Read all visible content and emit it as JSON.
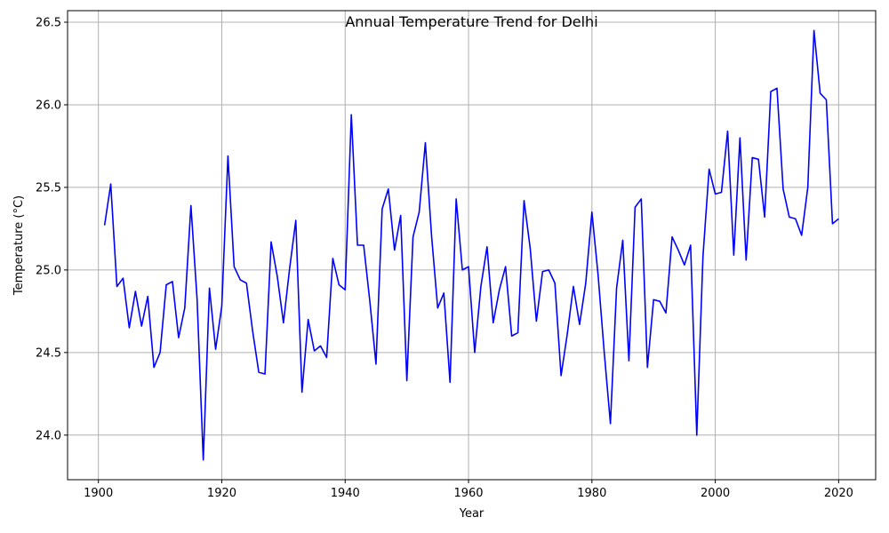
{
  "chart_data": {
    "type": "line",
    "title": "Annual Temperature Trend for Delhi",
    "xlabel": "Year",
    "ylabel": "Temperature (°C)",
    "xlim": [
      1895,
      2026
    ],
    "ylim": [
      23.73,
      26.57
    ],
    "x_ticks": [
      1900,
      1920,
      1940,
      1960,
      1980,
      2000,
      2020
    ],
    "y_ticks": [
      24.0,
      24.5,
      25.0,
      25.5,
      26.0,
      26.5
    ],
    "x_tick_labels": [
      "1900",
      "1920",
      "1940",
      "1960",
      "1980",
      "2000",
      "2020"
    ],
    "y_tick_labels": [
      "24.0",
      "24.5",
      "25.0",
      "25.5",
      "26.0",
      "26.5"
    ],
    "grid": true,
    "series": [
      {
        "color": "#0000ff",
        "x": [
          1901,
          1902,
          1903,
          1904,
          1905,
          1906,
          1907,
          1908,
          1909,
          1910,
          1911,
          1912,
          1913,
          1914,
          1915,
          1916,
          1917,
          1918,
          1919,
          1920,
          1921,
          1922,
          1923,
          1924,
          1925,
          1926,
          1927,
          1928,
          1929,
          1930,
          1931,
          1932,
          1933,
          1934,
          1935,
          1936,
          1937,
          1938,
          1939,
          1940,
          1941,
          1942,
          1943,
          1944,
          1945,
          1946,
          1947,
          1948,
          1949,
          1950,
          1951,
          1952,
          1953,
          1954,
          1955,
          1956,
          1957,
          1958,
          1959,
          1960,
          1961,
          1962,
          1963,
          1964,
          1965,
          1966,
          1967,
          1968,
          1969,
          1970,
          1971,
          1972,
          1973,
          1974,
          1975,
          1976,
          1977,
          1978,
          1979,
          1980,
          1981,
          1982,
          1983,
          1984,
          1985,
          1986,
          1987,
          1988,
          1989,
          1990,
          1991,
          1992,
          1993,
          1994,
          1995,
          1996,
          1997,
          1998,
          1999,
          2000,
          2001,
          2002,
          2003,
          2004,
          2005,
          2006,
          2007,
          2008,
          2009,
          2010,
          2011,
          2012,
          2013,
          2014,
          2015,
          2016,
          2017,
          2018,
          2019,
          2020
        ],
        "values": [
          25.27,
          25.52,
          24.9,
          24.95,
          24.65,
          24.87,
          24.66,
          24.84,
          24.41,
          24.5,
          24.91,
          24.93,
          24.59,
          24.77,
          25.39,
          24.82,
          23.85,
          24.89,
          24.52,
          24.78,
          25.69,
          25.02,
          24.94,
          24.92,
          24.63,
          24.38,
          24.37,
          25.17,
          24.96,
          24.68,
          25.01,
          25.3,
          24.26,
          24.7,
          24.51,
          24.54,
          24.47,
          25.07,
          24.91,
          24.88,
          25.94,
          25.15,
          25.15,
          24.81,
          24.43,
          25.37,
          25.49,
          25.12,
          25.33,
          24.33,
          25.2,
          25.35,
          25.77,
          25.21,
          24.77,
          24.86,
          24.32,
          25.43,
          25.0,
          25.02,
          24.5,
          24.9,
          25.14,
          24.68,
          24.88,
          25.02,
          24.6,
          24.62,
          25.42,
          25.13,
          24.69,
          24.99,
          25.0,
          24.92,
          24.36,
          24.61,
          24.9,
          24.67,
          24.92,
          25.35,
          24.97,
          24.5,
          24.07,
          24.89,
          25.18,
          24.45,
          25.38,
          25.43,
          24.41,
          24.82,
          24.81,
          24.74,
          25.2,
          25.12,
          25.03,
          25.15,
          24.0,
          25.08,
          25.61,
          25.46,
          25.47,
          25.84,
          25.09,
          25.8,
          25.06,
          25.68,
          25.67,
          25.32,
          26.08,
          26.1,
          25.49,
          25.32,
          25.31,
          25.21,
          25.5,
          26.45,
          26.07,
          26.03,
          25.28,
          25.31
        ]
      }
    ]
  }
}
